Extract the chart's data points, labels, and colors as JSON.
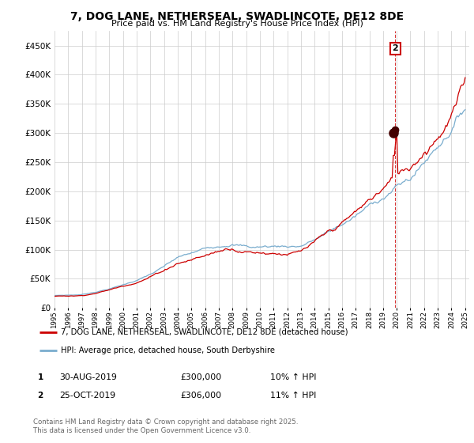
{
  "title": "7, DOG LANE, NETHERSEAL, SWADLINCOTE, DE12 8DE",
  "subtitle": "Price paid vs. HM Land Registry's House Price Index (HPI)",
  "ylim": [
    0,
    475000
  ],
  "yticks": [
    0,
    50000,
    100000,
    150000,
    200000,
    250000,
    300000,
    350000,
    400000,
    450000
  ],
  "ytick_labels": [
    "£0",
    "£50K",
    "£100K",
    "£150K",
    "£200K",
    "£250K",
    "£300K",
    "£350K",
    "£400K",
    "£450K"
  ],
  "x_start_year": 1995,
  "x_end_year": 2025,
  "line1_color": "#cc0000",
  "line2_color": "#7aadce",
  "annotation1_label": "1",
  "annotation1_date": "30-AUG-2019",
  "annotation1_price": "£300,000",
  "annotation1_hpi": "10% ↑ HPI",
  "annotation2_label": "2",
  "annotation2_date": "25-OCT-2019",
  "annotation2_price": "£306,000",
  "annotation2_hpi": "11% ↑ HPI",
  "legend1_label": "7, DOG LANE, NETHERSEAL, SWADLINCOTE, DE12 8DE (detached house)",
  "legend2_label": "HPI: Average price, detached house, South Derbyshire",
  "footer": "Contains HM Land Registry data © Crown copyright and database right 2025.\nThis data is licensed under the Open Government Licence v3.0.",
  "background_color": "#ffffff",
  "grid_color": "#cccccc"
}
